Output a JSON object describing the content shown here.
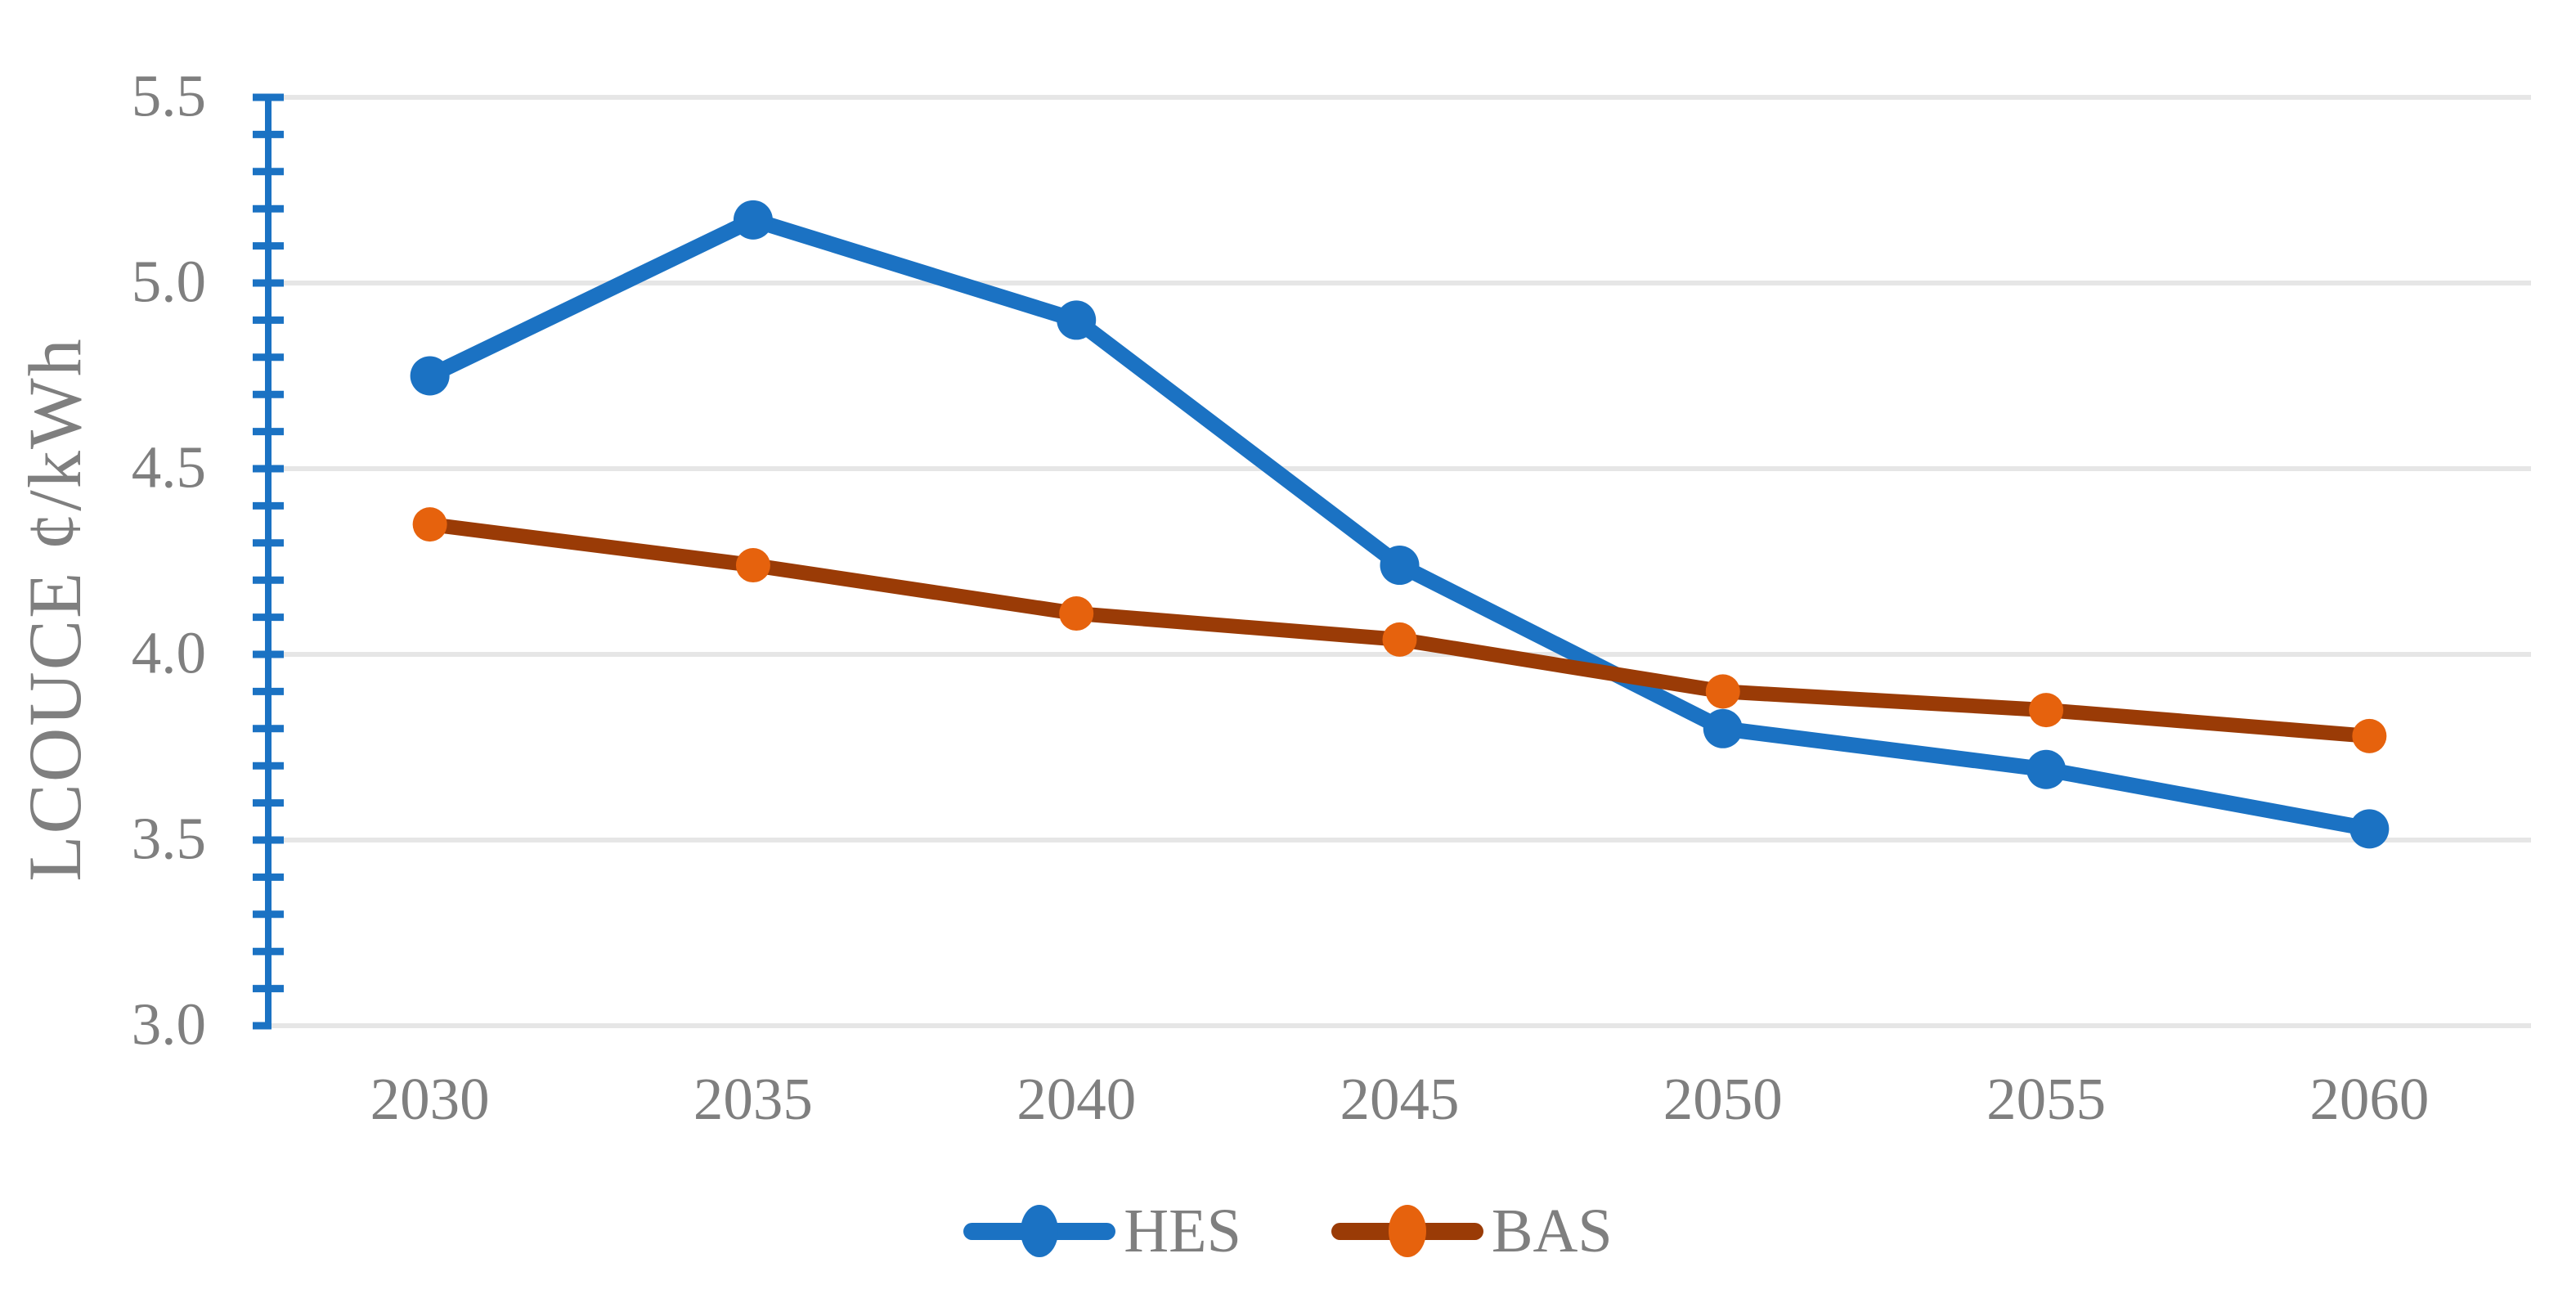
{
  "chart_data": {
    "type": "line",
    "title": "",
    "xlabel": "",
    "ylabel": "LCOUCE ¢/kWh",
    "x_tick_labels": [
      "2030",
      "2035",
      "2040",
      "2045",
      "2050",
      "2055",
      "2060"
    ],
    "y_tick_labels": [
      "3.0",
      "3.5",
      "4.0",
      "4.5",
      "5.0",
      "5.5"
    ],
    "ylim": [
      3.0,
      5.5
    ],
    "y_major_step": 0.5,
    "y_minor_step": 0.1,
    "grid": "horizontal major gridlines only",
    "legend_position": "bottom-center",
    "series": [
      {
        "name": "HES",
        "values": [
          4.75,
          5.17,
          4.9,
          4.24,
          3.8,
          3.69,
          3.53
        ],
        "line_color": "#1B72C3",
        "marker_color": "#1B72C3"
      },
      {
        "name": "BAS",
        "values": [
          4.35,
          4.24,
          4.11,
          4.04,
          3.9,
          3.85,
          3.78
        ],
        "line_color": "#9A3B06",
        "marker_color": "#E6620D"
      }
    ],
    "colors": {
      "axis_line": "#1B72C3",
      "gridline": "#E6E6E6",
      "text": "#7F7F7F",
      "background": "#FFFFFF"
    }
  }
}
